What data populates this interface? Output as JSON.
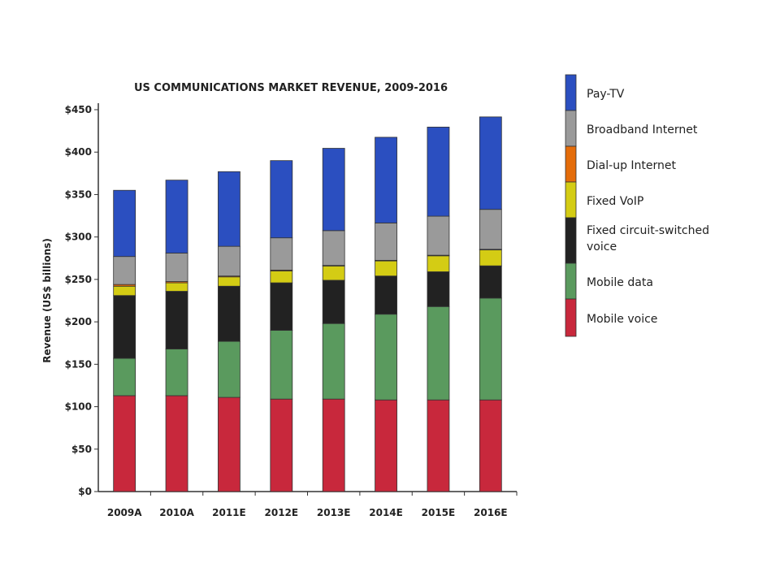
{
  "chart_data": {
    "type": "bar",
    "stacked": true,
    "title": "US COMMUNICATIONS MARKET REVENUE, 2009-2016",
    "xlabel": "",
    "ylabel": "Revenue (US$ billions)",
    "ylim": [
      0,
      450
    ],
    "yticks": [
      0,
      50,
      100,
      150,
      200,
      250,
      300,
      350,
      400,
      450
    ],
    "ytick_labels": [
      "$0",
      "$50",
      "$100",
      "$150",
      "$200",
      "$250",
      "$300",
      "$350",
      "$400",
      "$450"
    ],
    "grid": false,
    "legend_position": "right",
    "categories": [
      "2009A",
      "2010A",
      "2011E",
      "2012E",
      "2013E",
      "2014E",
      "2015E",
      "2016E"
    ],
    "series": [
      {
        "name": "Mobile voice",
        "color": "#c8283c",
        "values": [
          113,
          113,
          111,
          109,
          109,
          108,
          108,
          108
        ]
      },
      {
        "name": "Mobile data",
        "color": "#5a9a5e",
        "values": [
          44,
          55,
          66,
          81,
          89,
          101,
          110,
          120
        ]
      },
      {
        "name": "Fixed circuit-switched voice",
        "color": "#222222",
        "values": [
          74,
          68,
          65,
          56,
          51,
          45,
          41,
          38
        ]
      },
      {
        "name": "Fixed VoIP",
        "color": "#d4cc14",
        "values": [
          11,
          10,
          11,
          14,
          17,
          18,
          19,
          19
        ]
      },
      {
        "name": "Dial-up Internet",
        "color": "#e46c0a",
        "values": [
          2,
          1.5,
          1,
          1,
          0.5,
          0.5,
          0.5,
          0.5
        ]
      },
      {
        "name": "Broadband Internet",
        "color": "#9a9a9a",
        "values": [
          33,
          33.5,
          35,
          38,
          41,
          44,
          46,
          47
        ]
      },
      {
        "name": "Pay-TV",
        "color": "#2b4fc0",
        "values": [
          78,
          86,
          88,
          91,
          97,
          101,
          105,
          109
        ]
      }
    ],
    "legend_entries": [
      {
        "label": "Pay-TV",
        "color": "#2b4fc0"
      },
      {
        "label": "Broadband Internet",
        "color": "#9a9a9a"
      },
      {
        "label": "Dial-up Internet",
        "color": "#e46c0a"
      },
      {
        "label": "Fixed VoIP",
        "color": "#d4cc14"
      },
      {
        "label": "Fixed circuit-switched voice",
        "color": "#222222"
      },
      {
        "label": "Mobile data",
        "color": "#5a9a5e"
      },
      {
        "label": "Mobile voice",
        "color": "#c8283c"
      }
    ]
  }
}
